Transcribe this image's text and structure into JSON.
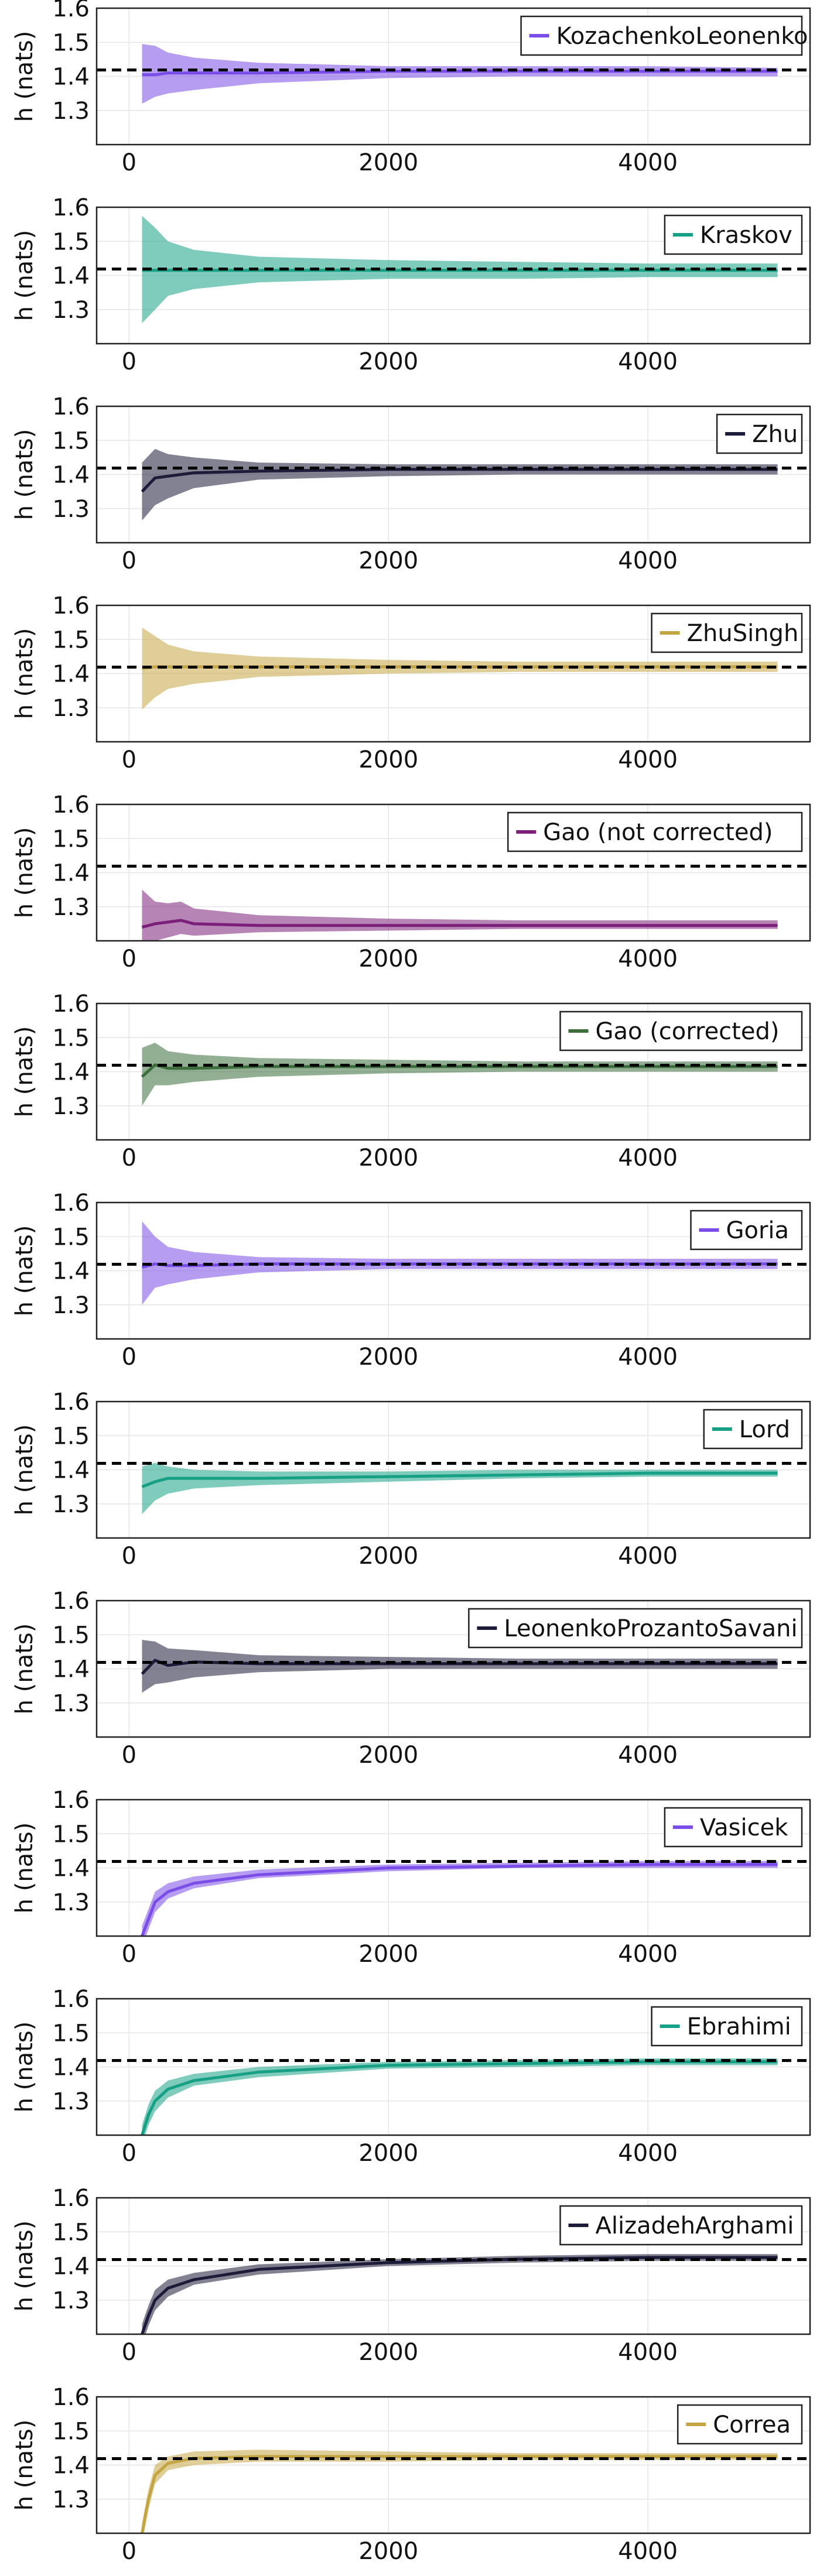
{
  "figure": {
    "reference_line": {
      "y": 1.4189,
      "color": "#000000",
      "style": "dashed"
    }
  },
  "chart_data": [
    {
      "type": "line",
      "legend": "KozachenkoLeonenko",
      "color": "#7b4de8",
      "ylabel": "h (nats)",
      "xlim": [
        -250,
        5250
      ],
      "ylim": [
        1.2,
        1.6
      ],
      "xticks": [
        0,
        2000,
        4000
      ],
      "yticks": [
        1.3,
        1.4,
        1.5,
        1.6
      ],
      "grid": true,
      "legend_position": "top-right",
      "x": [
        100,
        200,
        300,
        500,
        1000,
        2000,
        3000,
        4000,
        5000
      ],
      "y": [
        1.405,
        1.405,
        1.41,
        1.41,
        1.41,
        1.415,
        1.415,
        1.415,
        1.415
      ],
      "lower": [
        1.32,
        1.34,
        1.35,
        1.36,
        1.38,
        1.395,
        1.4,
        1.4,
        1.4
      ],
      "upper": [
        1.495,
        1.49,
        1.47,
        1.455,
        1.44,
        1.43,
        1.43,
        1.43,
        1.425
      ]
    },
    {
      "type": "line",
      "legend": "Kraskov",
      "color": "#16a085",
      "ylabel": "h (nats)",
      "xlim": [
        -250,
        5250
      ],
      "ylim": [
        1.2,
        1.6
      ],
      "xticks": [
        0,
        2000,
        4000
      ],
      "yticks": [
        1.3,
        1.4,
        1.5,
        1.6
      ],
      "grid": true,
      "legend_position": "top-right",
      "x": [
        100,
        200,
        300,
        500,
        1000,
        2000,
        3000,
        4000,
        5000
      ],
      "y": [
        1.415,
        1.415,
        1.415,
        1.415,
        1.415,
        1.415,
        1.415,
        1.415,
        1.415
      ],
      "lower": [
        1.26,
        1.3,
        1.34,
        1.36,
        1.38,
        1.39,
        1.39,
        1.395,
        1.395
      ],
      "upper": [
        1.575,
        1.54,
        1.5,
        1.475,
        1.455,
        1.445,
        1.44,
        1.435,
        1.435
      ]
    },
    {
      "type": "line",
      "legend": "Zhu",
      "color": "#1c1b3a",
      "ylabel": "h (nats)",
      "xlim": [
        -250,
        5250
      ],
      "ylim": [
        1.2,
        1.6
      ],
      "xticks": [
        0,
        2000,
        4000
      ],
      "yticks": [
        1.3,
        1.4,
        1.5,
        1.6
      ],
      "grid": true,
      "legend_position": "top-right",
      "x": [
        100,
        200,
        300,
        500,
        1000,
        2000,
        3000,
        4000,
        5000
      ],
      "y": [
        1.35,
        1.39,
        1.395,
        1.405,
        1.41,
        1.415,
        1.415,
        1.415,
        1.415
      ],
      "lower": [
        1.265,
        1.31,
        1.33,
        1.36,
        1.385,
        1.395,
        1.4,
        1.4,
        1.4
      ],
      "upper": [
        1.435,
        1.475,
        1.46,
        1.45,
        1.435,
        1.43,
        1.43,
        1.43,
        1.43
      ]
    },
    {
      "type": "line",
      "legend": "ZhuSingh",
      "color": "#c4a544",
      "ylabel": "h (nats)",
      "xlim": [
        -250,
        5250
      ],
      "ylim": [
        1.2,
        1.6
      ],
      "xticks": [
        0,
        2000,
        4000
      ],
      "yticks": [
        1.3,
        1.4,
        1.5,
        1.6
      ],
      "grid": true,
      "legend_position": "top-right",
      "x": [
        100,
        200,
        300,
        500,
        1000,
        2000,
        3000,
        4000,
        5000
      ],
      "y": [
        1.415,
        1.42,
        1.42,
        1.42,
        1.42,
        1.42,
        1.42,
        1.42,
        1.42
      ],
      "lower": [
        1.295,
        1.33,
        1.355,
        1.37,
        1.39,
        1.4,
        1.405,
        1.405,
        1.405
      ],
      "upper": [
        1.535,
        1.51,
        1.485,
        1.465,
        1.45,
        1.44,
        1.435,
        1.435,
        1.435
      ]
    },
    {
      "type": "line",
      "legend": "Gao (not corrected)",
      "color": "#7b1f7a",
      "ylabel": "h (nats)",
      "xlim": [
        -250,
        5250
      ],
      "ylim": [
        1.2,
        1.6
      ],
      "xticks": [
        0,
        2000,
        4000
      ],
      "yticks": [
        1.3,
        1.4,
        1.5,
        1.6
      ],
      "grid": true,
      "legend_position": "top-right",
      "x": [
        100,
        200,
        300,
        400,
        500,
        1000,
        2000,
        3000,
        4000,
        5000
      ],
      "y": [
        1.24,
        1.25,
        1.255,
        1.26,
        1.25,
        1.245,
        1.245,
        1.245,
        1.245,
        1.245
      ],
      "lower": [
        1.2,
        1.2,
        1.21,
        1.22,
        1.215,
        1.225,
        1.23,
        1.235,
        1.235,
        1.235
      ],
      "upper": [
        1.35,
        1.315,
        1.31,
        1.315,
        1.295,
        1.275,
        1.265,
        1.26,
        1.26,
        1.26
      ]
    },
    {
      "type": "line",
      "legend": "Gao (corrected)",
      "color": "#3b6e3b",
      "ylabel": "h (nats)",
      "xlim": [
        -250,
        5250
      ],
      "ylim": [
        1.2,
        1.6
      ],
      "xticks": [
        0,
        2000,
        4000
      ],
      "yticks": [
        1.3,
        1.4,
        1.5,
        1.6
      ],
      "grid": true,
      "legend_position": "top-right",
      "x": [
        100,
        200,
        300,
        500,
        1000,
        2000,
        3000,
        4000,
        5000
      ],
      "y": [
        1.385,
        1.42,
        1.41,
        1.41,
        1.415,
        1.415,
        1.415,
        1.415,
        1.415
      ],
      "lower": [
        1.3,
        1.36,
        1.36,
        1.37,
        1.385,
        1.395,
        1.4,
        1.4,
        1.4
      ],
      "upper": [
        1.47,
        1.485,
        1.46,
        1.45,
        1.44,
        1.435,
        1.43,
        1.43,
        1.43
      ]
    },
    {
      "type": "line",
      "legend": "Goria",
      "color": "#7b4de8",
      "ylabel": "h (nats)",
      "xlim": [
        -250,
        5250
      ],
      "ylim": [
        1.2,
        1.6
      ],
      "xticks": [
        0,
        2000,
        4000
      ],
      "yticks": [
        1.3,
        1.4,
        1.5,
        1.6
      ],
      "grid": true,
      "legend_position": "top-right",
      "x": [
        100,
        200,
        300,
        500,
        1000,
        2000,
        3000,
        4000,
        5000
      ],
      "y": [
        1.41,
        1.42,
        1.415,
        1.415,
        1.42,
        1.42,
        1.42,
        1.42,
        1.42
      ],
      "lower": [
        1.3,
        1.35,
        1.36,
        1.375,
        1.395,
        1.405,
        1.405,
        1.405,
        1.405
      ],
      "upper": [
        1.545,
        1.5,
        1.47,
        1.455,
        1.44,
        1.435,
        1.435,
        1.435,
        1.435
      ]
    },
    {
      "type": "line",
      "legend": "Lord",
      "color": "#16a085",
      "ylabel": "h (nats)",
      "xlim": [
        -250,
        5250
      ],
      "ylim": [
        1.2,
        1.6
      ],
      "xticks": [
        0,
        2000,
        4000
      ],
      "yticks": [
        1.3,
        1.4,
        1.5,
        1.6
      ],
      "grid": true,
      "legend_position": "top-right",
      "x": [
        100,
        200,
        300,
        500,
        1000,
        2000,
        3000,
        4000,
        5000
      ],
      "y": [
        1.35,
        1.365,
        1.375,
        1.375,
        1.375,
        1.38,
        1.385,
        1.39,
        1.39
      ],
      "lower": [
        1.27,
        1.31,
        1.33,
        1.345,
        1.355,
        1.365,
        1.375,
        1.38,
        1.38
      ],
      "upper": [
        1.41,
        1.42,
        1.41,
        1.4,
        1.395,
        1.395,
        1.4,
        1.4,
        1.4
      ]
    },
    {
      "type": "line",
      "legend": "LeonenkoProzantoSavani",
      "color": "#1c1b3a",
      "ylabel": "h (nats)",
      "xlim": [
        -250,
        5250
      ],
      "ylim": [
        1.2,
        1.6
      ],
      "xticks": [
        0,
        2000,
        4000
      ],
      "yticks": [
        1.3,
        1.4,
        1.5,
        1.6
      ],
      "grid": true,
      "legend_position": "top-right",
      "x": [
        100,
        200,
        300,
        500,
        1000,
        2000,
        3000,
        4000,
        5000
      ],
      "y": [
        1.385,
        1.425,
        1.41,
        1.42,
        1.415,
        1.415,
        1.415,
        1.415,
        1.415
      ],
      "lower": [
        1.33,
        1.355,
        1.36,
        1.375,
        1.39,
        1.4,
        1.4,
        1.4,
        1.4
      ],
      "upper": [
        1.485,
        1.48,
        1.46,
        1.455,
        1.44,
        1.435,
        1.43,
        1.43,
        1.43
      ]
    },
    {
      "type": "line",
      "legend": "Vasicek",
      "color": "#7b4de8",
      "ylabel": "h (nats)",
      "xlim": [
        -250,
        5250
      ],
      "ylim": [
        1.2,
        1.6
      ],
      "xticks": [
        0,
        2000,
        4000
      ],
      "yticks": [
        1.3,
        1.4,
        1.5,
        1.6
      ],
      "grid": true,
      "legend_position": "top-right",
      "x": [
        100,
        150,
        200,
        300,
        500,
        1000,
        2000,
        3000,
        4000,
        5000
      ],
      "y": [
        1.2,
        1.25,
        1.3,
        1.33,
        1.355,
        1.38,
        1.4,
        1.405,
        1.41,
        1.41
      ],
      "lower": [
        1.17,
        1.22,
        1.27,
        1.31,
        1.34,
        1.37,
        1.39,
        1.4,
        1.4,
        1.4
      ],
      "upper": [
        1.23,
        1.28,
        1.33,
        1.355,
        1.375,
        1.395,
        1.41,
        1.415,
        1.42,
        1.42
      ]
    },
    {
      "type": "line",
      "legend": "Ebrahimi",
      "color": "#16a085",
      "ylabel": "h (nats)",
      "xlim": [
        -250,
        5250
      ],
      "ylim": [
        1.2,
        1.6
      ],
      "xticks": [
        0,
        2000,
        4000
      ],
      "yticks": [
        1.3,
        1.4,
        1.5,
        1.6
      ],
      "grid": true,
      "legend_position": "top-right",
      "x": [
        100,
        150,
        200,
        300,
        500,
        1000,
        2000,
        3000,
        4000,
        5000
      ],
      "y": [
        1.2,
        1.26,
        1.3,
        1.335,
        1.36,
        1.385,
        1.405,
        1.41,
        1.415,
        1.415
      ],
      "lower": [
        1.17,
        1.23,
        1.27,
        1.31,
        1.345,
        1.37,
        1.395,
        1.4,
        1.405,
        1.405
      ],
      "upper": [
        1.23,
        1.29,
        1.33,
        1.36,
        1.38,
        1.4,
        1.415,
        1.42,
        1.425,
        1.425
      ]
    },
    {
      "type": "line",
      "legend": "AlizadehArghami",
      "color": "#1c1b3a",
      "ylabel": "h (nats)",
      "xlim": [
        -250,
        5250
      ],
      "ylim": [
        1.2,
        1.6
      ],
      "xticks": [
        0,
        2000,
        4000
      ],
      "yticks": [
        1.3,
        1.4,
        1.5,
        1.6
      ],
      "grid": true,
      "legend_position": "top-right",
      "x": [
        100,
        150,
        200,
        300,
        500,
        1000,
        2000,
        3000,
        4000,
        5000
      ],
      "y": [
        1.2,
        1.255,
        1.3,
        1.335,
        1.36,
        1.39,
        1.41,
        1.42,
        1.425,
        1.425
      ],
      "lower": [
        1.17,
        1.225,
        1.27,
        1.31,
        1.345,
        1.375,
        1.4,
        1.41,
        1.415,
        1.415
      ],
      "upper": [
        1.23,
        1.285,
        1.33,
        1.36,
        1.38,
        1.405,
        1.42,
        1.43,
        1.435,
        1.435
      ]
    },
    {
      "type": "line",
      "legend": "Correa",
      "color": "#c4a544",
      "ylabel": "h (nats)",
      "xlim": [
        -250,
        5250
      ],
      "ylim": [
        1.2,
        1.6
      ],
      "xticks": [
        0,
        2000,
        4000
      ],
      "yticks": [
        1.3,
        1.4,
        1.5,
        1.6
      ],
      "grid": true,
      "legend_position": "top-right",
      "x": [
        100,
        150,
        200,
        300,
        500,
        1000,
        2000,
        3000,
        4000,
        5000
      ],
      "y": [
        1.2,
        1.3,
        1.37,
        1.405,
        1.42,
        1.425,
        1.425,
        1.425,
        1.425,
        1.425
      ],
      "lower": [
        1.17,
        1.27,
        1.345,
        1.385,
        1.4,
        1.41,
        1.41,
        1.415,
        1.415,
        1.415
      ],
      "upper": [
        1.23,
        1.33,
        1.4,
        1.425,
        1.44,
        1.445,
        1.44,
        1.435,
        1.435,
        1.435
      ]
    }
  ]
}
